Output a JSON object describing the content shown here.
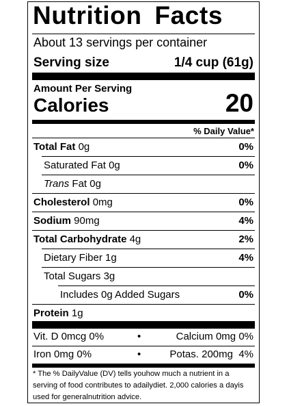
{
  "title": "Nutrition Facts",
  "servings_per_container": "About 13 servings per container",
  "serving_size": {
    "label": "Serving size",
    "value": "1/4 cup (61g)"
  },
  "amount_per_serving": "Amount Per Serving",
  "calories": {
    "label": "Calories",
    "value": "20"
  },
  "daily_value_header": "% Daily Value*",
  "nutrients": [
    {
      "name": "Total Fat",
      "amount": "0g",
      "dv": "0%"
    },
    {
      "name": "Saturated Fat",
      "amount": "0g",
      "dv": "0%"
    },
    {
      "name": "Trans",
      "name_rest": "Fat",
      "amount": "0g",
      "dv": ""
    },
    {
      "name": "Cholesterol",
      "amount": "0mg",
      "dv": "0%"
    },
    {
      "name": "Sodium",
      "amount": "90mg",
      "dv": "4%"
    },
    {
      "name": "Total Carbohydrate",
      "amount": "4g",
      "dv": "2%"
    },
    {
      "name": "Dietary Fiber",
      "amount": "1g",
      "dv": "4%"
    },
    {
      "name": "Total Sugars",
      "amount": "3g",
      "dv": ""
    },
    {
      "name": "Includes 0g Added Sugars",
      "amount": "",
      "dv": "0%"
    },
    {
      "name": "Protein",
      "amount": "1g",
      "dv": ""
    }
  ],
  "vitamins": [
    {
      "left": "Vit. D 0mcg 0%",
      "separator": "•",
      "right": "Calcium 0mg 0%"
    },
    {
      "left": "Iron 0mg 0%",
      "separator": "•",
      "right": "Potas. 200mg  4%"
    }
  ],
  "footnote": "* The % DailyValue (DV) tells youhow much a nutrient in a serving of food contributes to adailydiet. 2,000 calories a dayis used for generalnutrition advice."
}
